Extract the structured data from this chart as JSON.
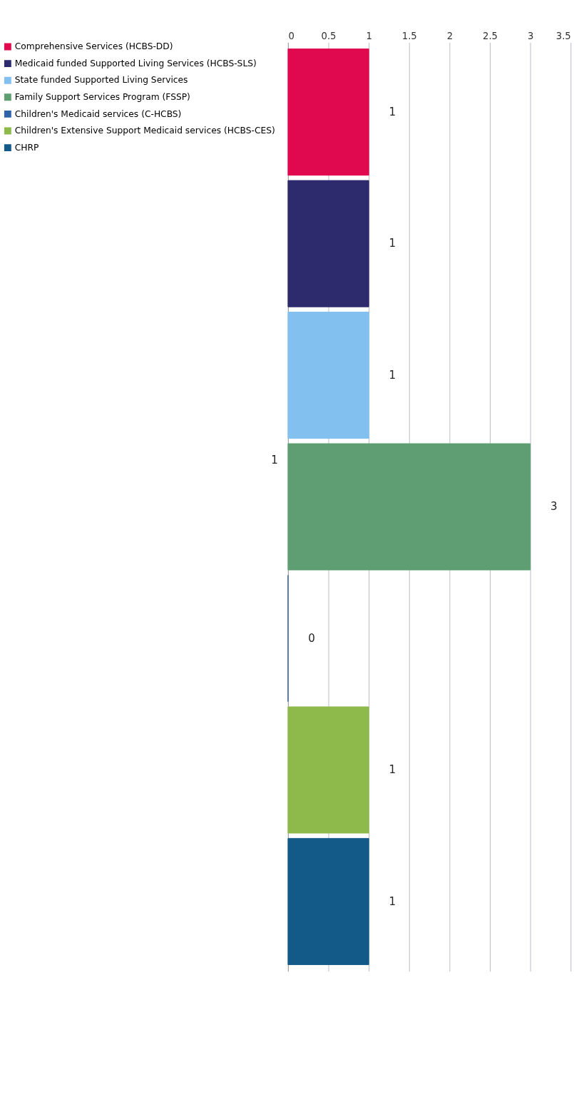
{
  "chart_data": {
    "type": "bar",
    "orientation": "horizontal",
    "categories": [
      null
    ],
    "series": [
      {
        "name": "Comprehensive Services (HCBS-DD)",
        "color": "#e0084e",
        "values": [
          1
        ]
      },
      {
        "name": "Medicaid funded Supported Living Services (HCBS-SLS)",
        "color": "#2d2b6e",
        "values": [
          1
        ]
      },
      {
        "name": "State funded Supported Living Services",
        "color": "#82c0ef",
        "values": [
          1
        ]
      },
      {
        "name": "Family Support Services Program (FSSP)",
        "color": "#5e9e72",
        "values": [
          3
        ]
      },
      {
        "name": "Children's Medicaid services (C-HCBS)",
        "color": "#2e63a8",
        "values": [
          0
        ]
      },
      {
        "name": "Children's Extensive Support Medicaid services (HCBS-CES)",
        "color": "#8dba4a",
        "values": [
          1
        ]
      },
      {
        "name": "CHRP",
        "color": "#145a88",
        "values": [
          1
        ]
      }
    ],
    "xlim": [
      0,
      3.5
    ],
    "xticks": [
      0,
      0.5,
      1,
      1.5,
      2,
      2.5,
      3,
      3.5
    ],
    "grid": "x",
    "legend": "left",
    "data_labels": true,
    "annotations": [
      "1"
    ]
  }
}
